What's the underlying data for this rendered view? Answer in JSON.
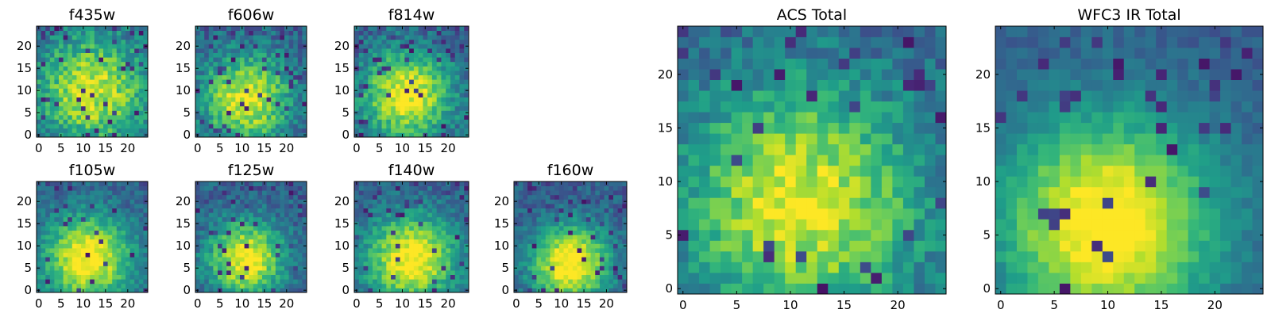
{
  "figure": {
    "colormap": "viridis",
    "frame_color": "#000000"
  },
  "chart_data": [
    {
      "type": "heatmap",
      "title": "f435w",
      "shape": [
        25,
        25
      ],
      "xlim": [
        -0.5,
        24.5
      ],
      "ylim": [
        -0.5,
        24.5
      ],
      "xticks": [
        0,
        5,
        10,
        15,
        20
      ],
      "yticks": [
        0,
        5,
        10,
        15,
        20
      ],
      "center": [
        12,
        10
      ],
      "peak_sigma": 9,
      "peak": 0.62,
      "noise": 0.32,
      "dark_frac": 0.04,
      "seed": 11
    },
    {
      "type": "heatmap",
      "title": "f606w",
      "shape": [
        25,
        25
      ],
      "xlim": [
        -0.5,
        24.5
      ],
      "ylim": [
        -0.5,
        24.5
      ],
      "xticks": [
        0,
        5,
        10,
        15,
        20
      ],
      "yticks": [
        0,
        5,
        10,
        15,
        20
      ],
      "center": [
        11,
        8
      ],
      "peak_sigma": 7,
      "peak": 0.68,
      "noise": 0.3,
      "dark_frac": 0.05,
      "seed": 23
    },
    {
      "type": "heatmap",
      "title": "f814w",
      "shape": [
        25,
        25
      ],
      "xlim": [
        -0.5,
        24.5
      ],
      "ylim": [
        -0.5,
        24.5
      ],
      "xticks": [
        0,
        5,
        10,
        15,
        20
      ],
      "yticks": [
        0,
        5,
        10,
        15,
        20
      ],
      "center": [
        11,
        9
      ],
      "peak_sigma": 7,
      "peak": 0.7,
      "noise": 0.28,
      "dark_frac": 0.05,
      "seed": 37
    },
    {
      "type": "heatmap",
      "title": "f105w",
      "shape": [
        25,
        25
      ],
      "xlim": [
        -0.5,
        24.5
      ],
      "ylim": [
        -0.5,
        24.5
      ],
      "xticks": [
        0,
        5,
        10,
        15,
        20
      ],
      "yticks": [
        0,
        5,
        10,
        15,
        20
      ],
      "center": [
        11,
        7
      ],
      "peak_sigma": 7,
      "peak": 0.74,
      "noise": 0.22,
      "dark_frac": 0.03,
      "seed": 41
    },
    {
      "type": "heatmap",
      "title": "f125w",
      "shape": [
        25,
        25
      ],
      "xlim": [
        -0.5,
        24.5
      ],
      "ylim": [
        -0.5,
        24.5
      ],
      "xticks": [
        0,
        5,
        10,
        15,
        20
      ],
      "yticks": [
        0,
        5,
        10,
        15,
        20
      ],
      "center": [
        11,
        7
      ],
      "peak_sigma": 6,
      "peak": 0.72,
      "noise": 0.26,
      "dark_frac": 0.05,
      "seed": 53
    },
    {
      "type": "heatmap",
      "title": "f140w",
      "shape": [
        25,
        25
      ],
      "xlim": [
        -0.5,
        24.5
      ],
      "ylim": [
        -0.5,
        24.5
      ],
      "xticks": [
        0,
        5,
        10,
        15,
        20
      ],
      "yticks": [
        0,
        5,
        10,
        15,
        20
      ],
      "center": [
        12,
        7
      ],
      "peak_sigma": 7,
      "peak": 0.74,
      "noise": 0.22,
      "dark_frac": 0.03,
      "seed": 67
    },
    {
      "type": "heatmap",
      "title": "f160w",
      "shape": [
        25,
        25
      ],
      "xlim": [
        -0.5,
        24.5
      ],
      "ylim": [
        -0.5,
        24.5
      ],
      "xticks": [
        0,
        5,
        10,
        15,
        20
      ],
      "yticks": [
        0,
        5,
        10,
        15,
        20
      ],
      "center": [
        12,
        6
      ],
      "peak_sigma": 6,
      "peak": 0.78,
      "noise": 0.22,
      "dark_frac": 0.05,
      "seed": 79
    },
    {
      "type": "heatmap",
      "title": "ACS Total",
      "shape": [
        25,
        25
      ],
      "xlim": [
        -0.5,
        24.5
      ],
      "ylim": [
        -0.5,
        24.5
      ],
      "xticks": [
        0,
        5,
        10,
        15,
        20
      ],
      "yticks": [
        0,
        5,
        10,
        15,
        20
      ],
      "center": [
        11,
        8
      ],
      "peak_sigma": 8,
      "peak": 0.66,
      "noise": 0.26,
      "dark_frac": 0.04,
      "seed": 97
    },
    {
      "type": "heatmap",
      "title": "WFC3 IR Total",
      "shape": [
        25,
        25
      ],
      "xlim": [
        -0.5,
        24.5
      ],
      "ylim": [
        -0.5,
        24.5
      ],
      "xticks": [
        0,
        5,
        10,
        15,
        20
      ],
      "yticks": [
        0,
        5,
        10,
        15,
        20
      ],
      "center": [
        10,
        6
      ],
      "peak_sigma": 7,
      "peak": 0.78,
      "noise": 0.14,
      "dark_frac": 0.03,
      "seed": 101
    }
  ]
}
